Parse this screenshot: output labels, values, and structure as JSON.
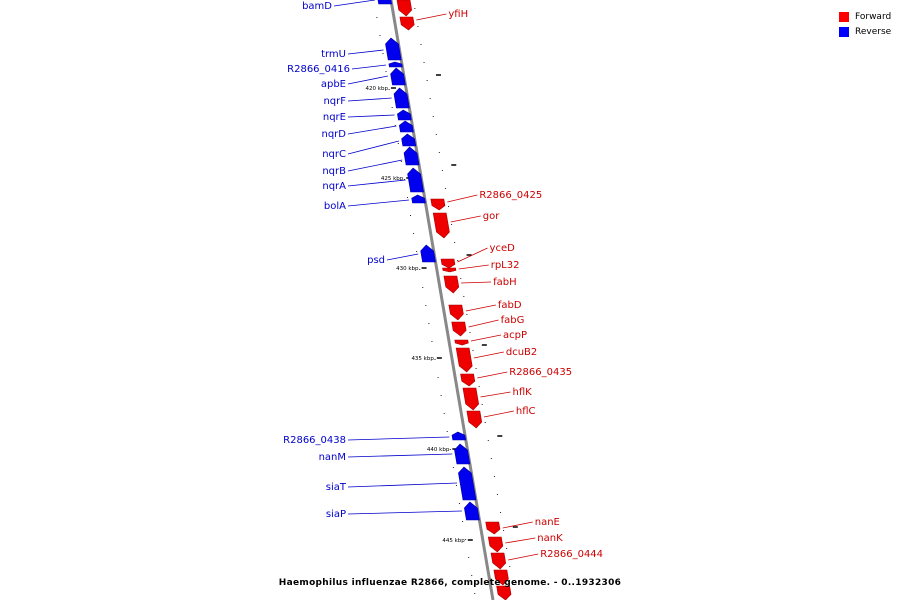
{
  "caption": "Haemophilus influenzae R2866, complete genome. - 0..1932306",
  "legend": [
    {
      "label": "Forward",
      "color": "#ff0000"
    },
    {
      "label": "Reverse",
      "color": "#0000ff"
    }
  ],
  "colors": {
    "forward": "#ee0000",
    "reverse": "#0000ee",
    "backbone": "#888888"
  },
  "scale_labels": [
    "420 kbp",
    "425 kbp",
    "430 kbp",
    "435 kbp",
    "440 kbp",
    "445 kbp"
  ],
  "reverse_genes": [
    "bamD",
    "trmU",
    "R2866_0416",
    "apbE",
    "nqrF",
    "nqrE",
    "nqrD",
    "nqrC",
    "nqrB",
    "nqrA",
    "bolA",
    "psd",
    "R2866_0438",
    "nanM",
    "siaT",
    "siaP"
  ],
  "forward_genes": [
    "yfiH",
    "R2866_0425",
    "gor",
    "yceD",
    "rpL32",
    "fabH",
    "fabD",
    "fabG",
    "acpP",
    "dcuB2",
    "R2866_0435",
    "hflK",
    "hflC",
    "nanE",
    "nanK",
    "R2866_0444"
  ]
}
